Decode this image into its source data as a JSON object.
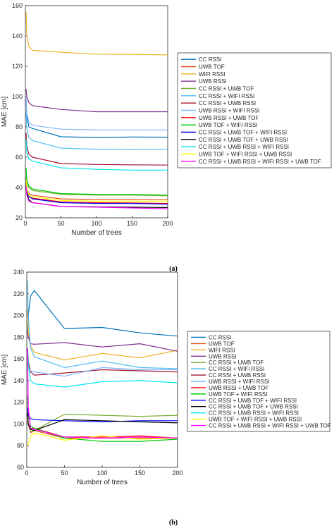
{
  "chart_data": [
    {
      "type": "line",
      "panel_label": "(a)",
      "xlabel": "Number of trees",
      "ylabel": "MAE [cm]",
      "xlim": [
        0,
        200
      ],
      "ylim": [
        20,
        160
      ],
      "xticks": [
        0,
        50,
        100,
        150,
        200
      ],
      "yticks": [
        20,
        40,
        60,
        80,
        100,
        120,
        140,
        160
      ],
      "grid": false,
      "legend_position": "right",
      "x": [
        1,
        2,
        5,
        10,
        50,
        100,
        150,
        200
      ],
      "series": [
        {
          "name": "CC RSSI",
          "color": "#0072bd",
          "values": [
            99,
            87,
            80,
            79,
            73.5,
            73,
            73.3,
            73.2
          ]
        },
        {
          "name": "UWB TOF",
          "color": "#d95319",
          "values": [
            42,
            39,
            36,
            35,
            32.5,
            32,
            32,
            32
          ]
        },
        {
          "name": "WIFI RSSI",
          "color": "#edb120",
          "values": [
            156,
            141,
            133,
            130.5,
            129.2,
            128,
            127.8,
            127.5
          ]
        },
        {
          "name": "UWB RSSI",
          "color": "#7e2f8e",
          "values": [
            105,
            100,
            96,
            94,
            91.5,
            90,
            90,
            90
          ]
        },
        {
          "name": "CC RSSI + UWB TOF",
          "color": "#77ac30",
          "values": [
            47,
            43,
            40,
            38,
            35.5,
            35,
            35,
            34.5
          ]
        },
        {
          "name": "CC RSSI + WIFI RSSI",
          "color": "#4dbeee",
          "values": [
            90,
            79,
            73,
            71,
            66,
            65.3,
            65,
            65.2
          ]
        },
        {
          "name": "CC RSSI + UWB RSSI",
          "color": "#a2142f",
          "values": [
            76,
            67,
            62,
            60,
            55.8,
            55.2,
            55,
            54.8
          ]
        },
        {
          "name": "UWB RSSI + WIFI RSSI",
          "color": "#80b3ff",
          "values": [
            99,
            89,
            83,
            81,
            78.5,
            78,
            78,
            78
          ]
        },
        {
          "name": "UWB RSSI + UWB TOF",
          "color": "#ff0000",
          "values": [
            40,
            37,
            34,
            33,
            30.5,
            30,
            29.8,
            29.5
          ]
        },
        {
          "name": "UWB TOF + WIFI RSSI",
          "color": "#00cc00",
          "values": [
            53,
            45,
            41,
            39,
            36,
            35.5,
            35.5,
            35
          ]
        },
        {
          "name": "CC RSSI + UWB TOF + WIFI RSSI",
          "color": "#0000ff",
          "values": [
            44,
            38,
            34,
            32.5,
            30,
            29.5,
            29.5,
            29
          ]
        },
        {
          "name": "CC RSSI + UWB TOF + UWB RSSI",
          "color": "#000000",
          "values": [
            42,
            36,
            32,
            30,
            27.5,
            27.2,
            27,
            26.8
          ]
        },
        {
          "name": "CC RSSI + UWB RSSI + WIFI RSSI",
          "color": "#00e5ee",
          "values": [
            72,
            63,
            59,
            57.5,
            53,
            52,
            51.5,
            51.5
          ]
        },
        {
          "name": "UWB TOF + WIFI RSSI + UWB RSSI",
          "color": "#ffff00",
          "values": [
            45,
            39,
            35,
            34,
            31.5,
            31,
            31,
            31
          ]
        },
        {
          "name": "CC RSSI + UWB RSSI + WIFI RSSI + UWB TOF",
          "color": "#ff00ff",
          "values": [
            41,
            35,
            31,
            30,
            27.5,
            27,
            26.5,
            26
          ]
        }
      ]
    },
    {
      "type": "line",
      "panel_label": "(b)",
      "xlabel": "Number of trees",
      "ylabel": "MAE [cm]",
      "xlim": [
        0,
        200
      ],
      "ylim": [
        60,
        240
      ],
      "xticks": [
        0,
        50,
        100,
        150,
        200
      ],
      "yticks": [
        60,
        80,
        100,
        120,
        140,
        160,
        180,
        200,
        220,
        240
      ],
      "grid": false,
      "legend_position": "right",
      "x": [
        1,
        2,
        5,
        10,
        50,
        100,
        150,
        200
      ],
      "series": [
        {
          "name": "CC RSSI",
          "color": "#0072bd",
          "values": [
            185,
            200,
            218,
            223,
            188,
            189,
            184,
            181
          ]
        },
        {
          "name": "UWB TOF",
          "color": "#d95319",
          "values": [
            116,
            100,
            92,
            94,
            87,
            87,
            87,
            87
          ]
        },
        {
          "name": "WIFI RSSI",
          "color": "#edb120",
          "values": [
            205,
            185,
            172,
            166,
            159,
            165,
            161,
            168
          ]
        },
        {
          "name": "UWB RSSI",
          "color": "#7e2f8e",
          "values": [
            185,
            180,
            174,
            173.5,
            175,
            171,
            174,
            167
          ]
        },
        {
          "name": "CC RSSI + UWB TOF",
          "color": "#77ac30",
          "values": [
            116,
            100,
            93,
            94,
            109,
            108,
            107,
            108
          ]
        },
        {
          "name": "CC RSSI + WIFI RSSI",
          "color": "#4dbeee",
          "values": [
            232,
            200,
            170,
            162,
            152,
            158,
            152,
            151
          ]
        },
        {
          "name": "CC RSSI + UWB RSSI",
          "color": "#a2142f",
          "values": [
            170,
            158,
            148,
            145,
            147,
            150,
            149,
            148
          ]
        },
        {
          "name": "UWB RSSI + WIFI RSSI",
          "color": "#80b3ff",
          "values": [
            158,
            152,
            149,
            148,
            144,
            152,
            150,
            150
          ]
        },
        {
          "name": "UWB RSSI + UWB TOF",
          "color": "#ff0000",
          "values": [
            110,
            100,
            96,
            96,
            88,
            88,
            89,
            87
          ]
        },
        {
          "name": "UWB TOF + WIFI RSSI",
          "color": "#00cc00",
          "values": [
            126,
            110,
            98,
            96,
            87,
            84,
            84,
            86
          ]
        },
        {
          "name": "CC RSSI + UWB TOF + WIFI RSSI",
          "color": "#0000ff",
          "values": [
            115,
            108,
            105,
            104,
            103,
            102,
            103,
            103
          ]
        },
        {
          "name": "CC RSSI + UWB TOF + UWB RSSI",
          "color": "#000000",
          "values": [
            110,
            100,
            95,
            94,
            104,
            103,
            102,
            101
          ]
        },
        {
          "name": "CC RSSI + UWB RSSI + WIFI RSSI",
          "color": "#00e5ee",
          "values": [
            170,
            155,
            140,
            137,
            134,
            139,
            140,
            138
          ]
        },
        {
          "name": "UWB TOF + WIFI RSSI + UWB RSSI",
          "color": "#ffff00",
          "values": [
            80,
            82,
            88,
            92,
            85,
            89,
            86,
            87
          ]
        },
        {
          "name": "CC RSSI + UWB RSSI + WIFI RSSI + UWB TOF",
          "color": "#ff00ff",
          "values": [
            170,
            115,
            96,
            95,
            88,
            87,
            88,
            87
          ]
        }
      ]
    }
  ]
}
